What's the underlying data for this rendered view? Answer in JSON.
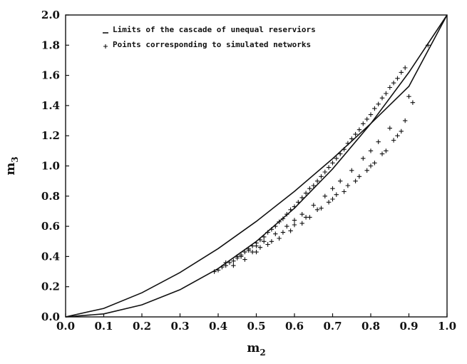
{
  "chart_data": {
    "type": "scatter",
    "xlabel": "m2",
    "ylabel": "m3",
    "xlim": [
      0.0,
      1.0
    ],
    "ylim": [
      0.0,
      2.0
    ],
    "x_ticks": [
      "0.0",
      "0.1",
      "0.2",
      "0.3",
      "0.4",
      "0.5",
      "0.6",
      "0.7",
      "0.8",
      "0.9",
      "1.0"
    ],
    "y_ticks": [
      "0.0",
      "0.2",
      "0.4",
      "0.6",
      "0.8",
      "1.0",
      "1.2",
      "1.4",
      "1.6",
      "1.8",
      "2.0"
    ],
    "x_tick_values": [
      0.0,
      0.1,
      0.2,
      0.3,
      0.4,
      0.5,
      0.6,
      0.7,
      0.8,
      0.9,
      1.0
    ],
    "y_tick_values": [
      0.0,
      0.2,
      0.4,
      0.6,
      0.8,
      1.0,
      1.2,
      1.4,
      1.6,
      1.8,
      2.0
    ],
    "legend": {
      "placement": "top-left",
      "entries": [
        {
          "marker": "line",
          "label": "Limits of the cascade of unequal reserviors"
        },
        {
          "marker": "+",
          "label": "Points corresponding to simulated networks"
        }
      ]
    },
    "limit_curves": [
      {
        "x": [
          0.0,
          0.1,
          0.2,
          0.3,
          0.4,
          0.5,
          0.6,
          0.7,
          0.8,
          0.9,
          1.0
        ],
        "y": [
          0.0,
          0.0563,
          0.16,
          0.2939,
          0.4525,
          0.6325,
          0.8316,
          1.0479,
          1.2802,
          1.5274,
          2.0
        ]
      },
      {
        "x": [
          0.0,
          0.1,
          0.2,
          0.3,
          0.4,
          0.5,
          0.6,
          0.7,
          0.8,
          0.9,
          1.0
        ],
        "y": [
          0.0,
          0.02,
          0.08,
          0.18,
          0.32,
          0.5,
          0.72,
          0.98,
          1.28,
          1.62,
          2.0
        ]
      }
    ],
    "series": [
      {
        "marker": "+",
        "x": [
          0.39,
          0.4,
          0.41,
          0.42,
          0.43,
          0.44,
          0.45,
          0.46,
          0.47,
          0.48,
          0.49,
          0.5,
          0.51,
          0.52,
          0.53,
          0.54,
          0.55,
          0.56,
          0.57,
          0.58,
          0.59,
          0.6,
          0.61,
          0.62,
          0.63,
          0.64,
          0.65,
          0.66,
          0.67,
          0.68,
          0.69,
          0.7,
          0.71,
          0.72,
          0.73,
          0.74,
          0.75,
          0.76,
          0.77,
          0.78,
          0.79,
          0.8,
          0.81,
          0.82,
          0.83,
          0.84,
          0.85,
          0.86,
          0.87,
          0.88,
          0.89,
          0.9,
          0.95,
          0.42,
          0.45,
          0.48,
          0.5,
          0.52,
          0.55,
          0.58,
          0.6,
          0.62,
          0.65,
          0.68,
          0.7,
          0.72,
          0.75,
          0.78,
          0.8,
          0.82,
          0.85,
          0.44,
          0.47,
          0.5,
          0.53,
          0.56,
          0.59,
          0.62,
          0.64,
          0.67,
          0.7,
          0.73,
          0.76,
          0.79,
          0.81,
          0.84,
          0.86,
          0.88,
          0.46,
          0.49,
          0.51,
          0.54,
          0.57,
          0.6,
          0.63,
          0.66,
          0.69,
          0.71,
          0.74,
          0.77,
          0.8,
          0.83,
          0.87,
          0.89,
          0.91
        ],
        "y": [
          0.3,
          0.31,
          0.33,
          0.34,
          0.36,
          0.37,
          0.39,
          0.41,
          0.43,
          0.45,
          0.47,
          0.49,
          0.51,
          0.53,
          0.56,
          0.58,
          0.6,
          0.63,
          0.65,
          0.68,
          0.71,
          0.73,
          0.76,
          0.79,
          0.82,
          0.85,
          0.87,
          0.9,
          0.93,
          0.96,
          0.99,
          1.02,
          1.05,
          1.08,
          1.11,
          1.15,
          1.18,
          1.21,
          1.24,
          1.28,
          1.31,
          1.34,
          1.38,
          1.41,
          1.45,
          1.48,
          1.52,
          1.55,
          1.58,
          1.62,
          1.65,
          1.46,
          1.8,
          0.36,
          0.4,
          0.44,
          0.47,
          0.5,
          0.55,
          0.6,
          0.64,
          0.68,
          0.74,
          0.8,
          0.85,
          0.9,
          0.97,
          1.05,
          1.1,
          1.16,
          1.25,
          0.34,
          0.38,
          0.43,
          0.48,
          0.52,
          0.57,
          0.62,
          0.66,
          0.72,
          0.78,
          0.83,
          0.9,
          0.97,
          1.02,
          1.1,
          1.17,
          1.23,
          0.4,
          0.43,
          0.46,
          0.5,
          0.56,
          0.61,
          0.66,
          0.71,
          0.76,
          0.81,
          0.87,
          0.93,
          1.0,
          1.08,
          1.2,
          1.3,
          1.42
        ]
      }
    ]
  }
}
